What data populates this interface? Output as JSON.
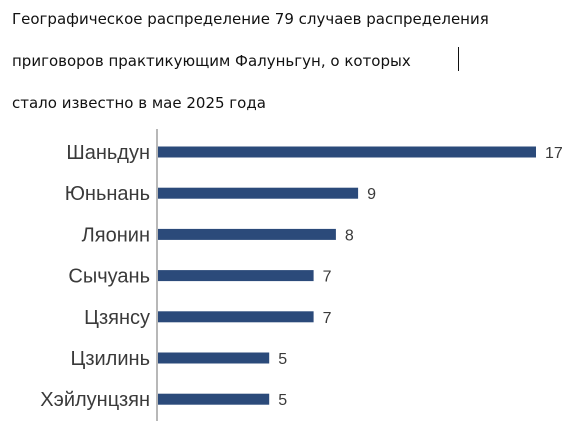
{
  "title_lines": [
    "Географическое распределение 79 случаев распределения",
    "приговоров практикующим Фалуньгун, о которых",
    "стало известно в мае 2025 года"
  ],
  "colors": {
    "bar": "#2b4a7a",
    "axis": "#b8b8b8",
    "text": "#3a3a3a",
    "title": "#111111"
  },
  "chart_data": {
    "type": "bar",
    "orientation": "horizontal",
    "title": "Географическое распределение 79 случаев распределения приговоров практикующим Фалуньгун, о которых стало известно в мае 2025 года",
    "categories": [
      "Шаньдун",
      "Юньнань",
      "Ляонин",
      "Сычуань",
      "Цзянсу",
      "Цзилинь",
      "Хэйлунцзян"
    ],
    "values": [
      17,
      9,
      8,
      7,
      7,
      5,
      5
    ],
    "xlim": [
      0,
      17
    ],
    "data_labels": true,
    "grid": false,
    "legend": "none"
  }
}
